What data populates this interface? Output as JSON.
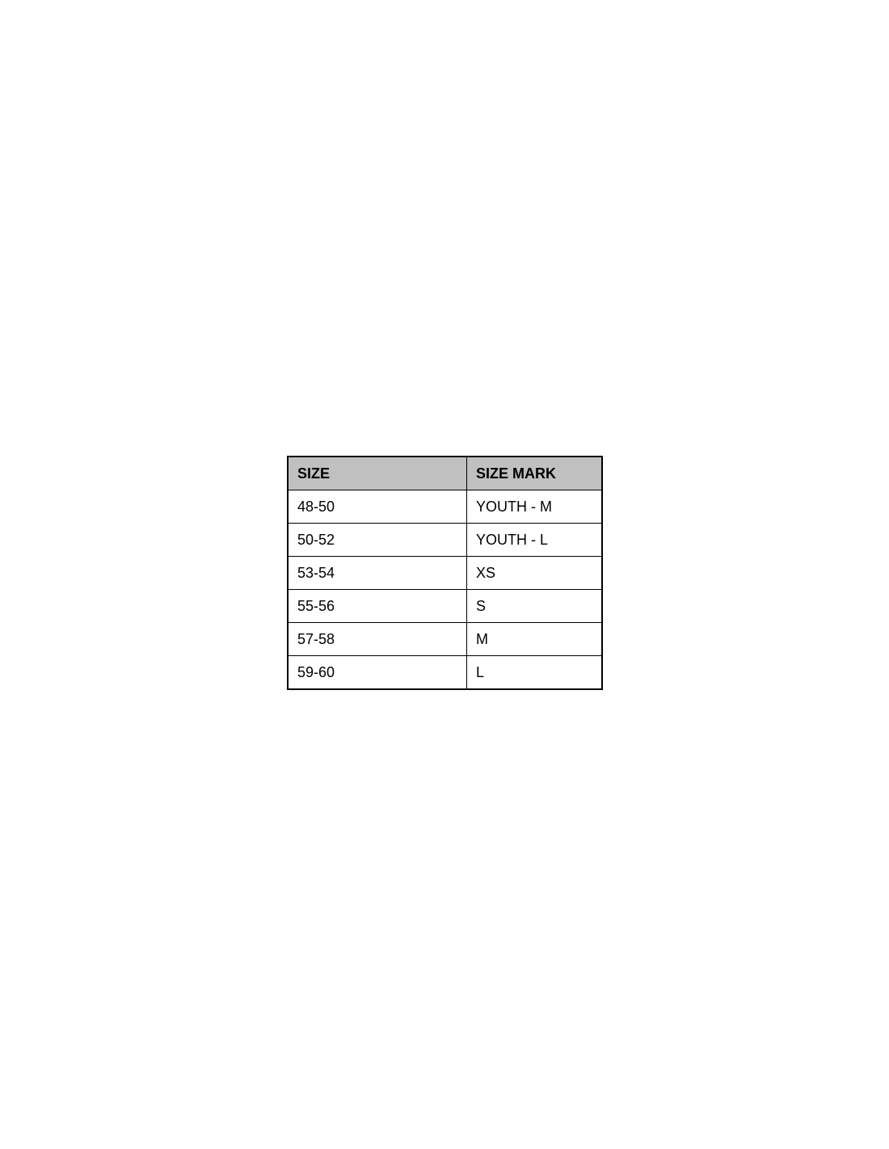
{
  "page": {
    "background": "#ffffff"
  },
  "table": {
    "columns": [
      "SIZE",
      "SIZE MARK"
    ],
    "rows": [
      {
        "size": "48-50",
        "mark": "YOUTH - M"
      },
      {
        "size": "50-52",
        "mark": "YOUTH - L"
      },
      {
        "size": "53-54",
        "mark": "XS"
      },
      {
        "size": "55-56",
        "mark": "S"
      },
      {
        "size": "57-58",
        "mark": "M"
      },
      {
        "size": "59-60",
        "mark": "L"
      }
    ],
    "colors": {
      "header_bg": "#c0c0c0",
      "border": "#000000",
      "text": "#000000"
    }
  },
  "chart_data": {
    "type": "table",
    "columns": [
      "SIZE",
      "SIZE MARK"
    ],
    "rows": [
      [
        "48-50",
        "YOUTH - M"
      ],
      [
        "50-52",
        "YOUTH - L"
      ],
      [
        "53-54",
        "XS"
      ],
      [
        "55-56",
        "S"
      ],
      [
        "57-58",
        "M"
      ],
      [
        "59-60",
        "L"
      ]
    ],
    "layout_hints": {
      "header_background": "#c0c0c0",
      "grid": true,
      "alignment": "left"
    }
  }
}
